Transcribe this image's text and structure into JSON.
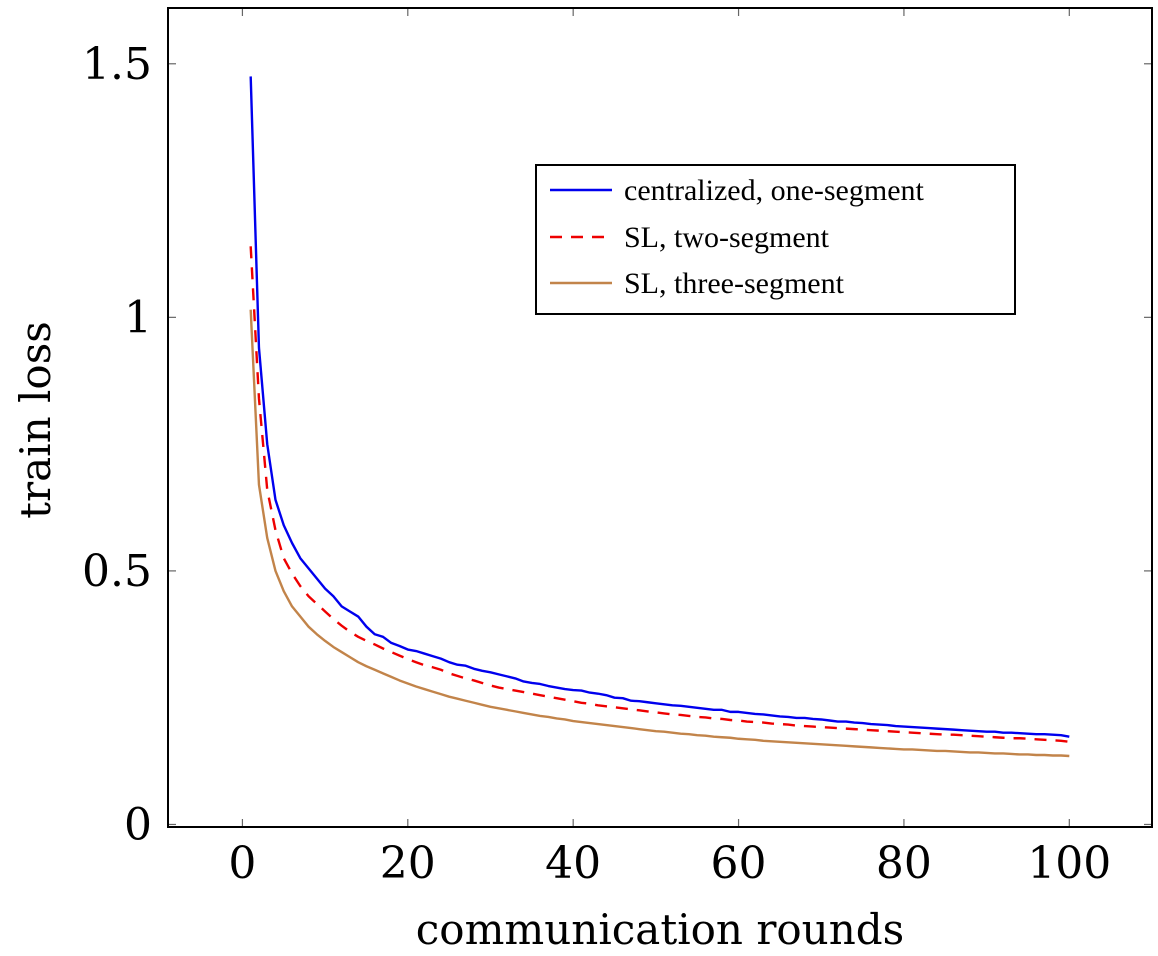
{
  "chart_data": {
    "type": "line",
    "title": "",
    "xlabel": "communication rounds",
    "ylabel": "train loss",
    "xlim": [
      -9,
      110
    ],
    "ylim": [
      -0.005,
      1.61
    ],
    "xticks": [
      0,
      20,
      40,
      60,
      80,
      100
    ],
    "yticks": [
      0,
      0.5,
      1,
      1.5
    ],
    "ytick_labels": [
      "0",
      "0.5",
      "1",
      "1.5"
    ],
    "grid": false,
    "legend_position": "upper-right",
    "x": [
      1,
      2,
      3,
      4,
      5,
      6,
      7,
      8,
      9,
      10,
      11,
      12,
      13,
      14,
      15,
      16,
      17,
      18,
      19,
      20,
      21,
      22,
      23,
      24,
      25,
      26,
      27,
      28,
      29,
      30,
      31,
      32,
      33,
      34,
      35,
      36,
      37,
      38,
      39,
      40,
      41,
      42,
      43,
      44,
      45,
      46,
      47,
      48,
      49,
      50,
      51,
      52,
      53,
      54,
      55,
      56,
      57,
      58,
      59,
      60,
      61,
      62,
      63,
      64,
      65,
      66,
      67,
      68,
      69,
      70,
      71,
      72,
      73,
      74,
      75,
      76,
      77,
      78,
      79,
      80,
      81,
      82,
      83,
      84,
      85,
      86,
      87,
      88,
      89,
      90,
      91,
      92,
      93,
      94,
      95,
      96,
      97,
      98,
      99,
      100
    ],
    "series": [
      {
        "name": "centralized, one-segment",
        "color": "#0000ee",
        "dash": "solid",
        "values": [
          1.475,
          0.94,
          0.75,
          0.64,
          0.59,
          0.555,
          0.525,
          0.505,
          0.485,
          0.465,
          0.45,
          0.43,
          0.42,
          0.41,
          0.39,
          0.375,
          0.37,
          0.358,
          0.352,
          0.345,
          0.342,
          0.337,
          0.332,
          0.327,
          0.32,
          0.315,
          0.313,
          0.307,
          0.303,
          0.3,
          0.296,
          0.292,
          0.288,
          0.282,
          0.279,
          0.277,
          0.273,
          0.27,
          0.267,
          0.265,
          0.264,
          0.26,
          0.258,
          0.255,
          0.25,
          0.249,
          0.244,
          0.243,
          0.241,
          0.239,
          0.237,
          0.235,
          0.234,
          0.232,
          0.23,
          0.228,
          0.226,
          0.226,
          0.222,
          0.222,
          0.22,
          0.218,
          0.217,
          0.215,
          0.213,
          0.212,
          0.21,
          0.21,
          0.208,
          0.207,
          0.205,
          0.203,
          0.203,
          0.201,
          0.2,
          0.198,
          0.197,
          0.196,
          0.194,
          0.193,
          0.192,
          0.191,
          0.19,
          0.189,
          0.188,
          0.187,
          0.186,
          0.185,
          0.184,
          0.183,
          0.183,
          0.181,
          0.181,
          0.18,
          0.179,
          0.178,
          0.178,
          0.177,
          0.176,
          0.173
        ]
      },
      {
        "name": "SL, two-segment",
        "color": "#ee0000",
        "dash": "dashed",
        "values": [
          1.14,
          0.84,
          0.66,
          0.58,
          0.525,
          0.495,
          0.47,
          0.45,
          0.435,
          0.42,
          0.405,
          0.392,
          0.38,
          0.37,
          0.362,
          0.355,
          0.347,
          0.34,
          0.333,
          0.326,
          0.32,
          0.314,
          0.31,
          0.305,
          0.298,
          0.293,
          0.288,
          0.284,
          0.279,
          0.274,
          0.27,
          0.267,
          0.264,
          0.261,
          0.258,
          0.255,
          0.252,
          0.249,
          0.246,
          0.243,
          0.24,
          0.238,
          0.235,
          0.233,
          0.231,
          0.229,
          0.227,
          0.225,
          0.223,
          0.221,
          0.219,
          0.217,
          0.216,
          0.214,
          0.212,
          0.211,
          0.209,
          0.208,
          0.206,
          0.205,
          0.203,
          0.202,
          0.201,
          0.199,
          0.198,
          0.197,
          0.195,
          0.194,
          0.193,
          0.192,
          0.191,
          0.19,
          0.189,
          0.188,
          0.187,
          0.186,
          0.185,
          0.184,
          0.183,
          0.182,
          0.181,
          0.18,
          0.179,
          0.178,
          0.177,
          0.177,
          0.176,
          0.175,
          0.174,
          0.173,
          0.172,
          0.171,
          0.17,
          0.17,
          0.169,
          0.168,
          0.167,
          0.166,
          0.165,
          0.163
        ]
      },
      {
        "name": "SL, three-segment",
        "color": "#c2844a",
        "dash": "solid",
        "values": [
          1.015,
          0.67,
          0.565,
          0.5,
          0.46,
          0.43,
          0.41,
          0.39,
          0.375,
          0.362,
          0.35,
          0.34,
          0.33,
          0.32,
          0.312,
          0.305,
          0.298,
          0.291,
          0.284,
          0.278,
          0.272,
          0.267,
          0.262,
          0.257,
          0.252,
          0.248,
          0.244,
          0.24,
          0.236,
          0.232,
          0.229,
          0.226,
          0.223,
          0.22,
          0.217,
          0.214,
          0.212,
          0.209,
          0.207,
          0.204,
          0.202,
          0.2,
          0.198,
          0.196,
          0.194,
          0.192,
          0.19,
          0.188,
          0.186,
          0.184,
          0.183,
          0.181,
          0.179,
          0.178,
          0.176,
          0.175,
          0.173,
          0.172,
          0.171,
          0.169,
          0.168,
          0.167,
          0.165,
          0.164,
          0.163,
          0.162,
          0.161,
          0.16,
          0.159,
          0.158,
          0.157,
          0.156,
          0.155,
          0.154,
          0.153,
          0.152,
          0.151,
          0.15,
          0.149,
          0.148,
          0.148,
          0.147,
          0.146,
          0.145,
          0.145,
          0.144,
          0.143,
          0.142,
          0.142,
          0.141,
          0.14,
          0.14,
          0.139,
          0.138,
          0.138,
          0.137,
          0.137,
          0.136,
          0.136,
          0.135
        ]
      }
    ]
  }
}
